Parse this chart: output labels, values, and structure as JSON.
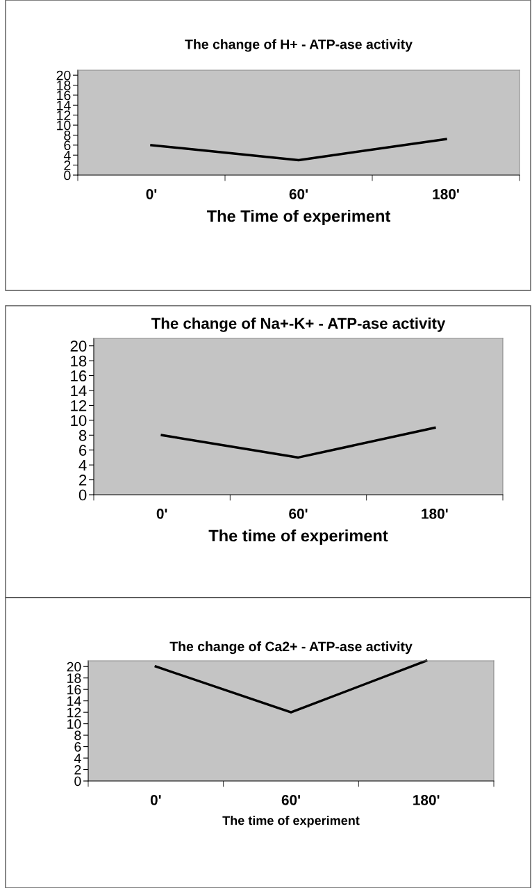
{
  "chart_data": [
    {
      "type": "line",
      "title": "The change of H+ - ATP-ase activity",
      "xlabel": "The Time of experiment",
      "categories": [
        "0'",
        "60'",
        "180'"
      ],
      "series": [
        {
          "color": "#000000",
          "values": [
            6,
            3,
            7.2
          ]
        }
      ],
      "ylim": [
        0,
        21
      ],
      "yticks": [
        0,
        2,
        4,
        6,
        8,
        10,
        12,
        14,
        16,
        18,
        20
      ],
      "grid": false,
      "marker": "none",
      "line_style": "solid"
    },
    {
      "type": "line",
      "title": "The change of Na+-K+ - ATP-ase activity",
      "xlabel": "The time of experiment",
      "categories": [
        "0'",
        "60'",
        "180'"
      ],
      "series": [
        {
          "color": "#000000",
          "values": [
            8,
            5,
            9
          ]
        }
      ],
      "ylim": [
        0,
        21
      ],
      "yticks": [
        0,
        2,
        4,
        6,
        8,
        10,
        12,
        14,
        16,
        18,
        20
      ],
      "grid": false,
      "marker": "none",
      "line_style": "solid"
    },
    {
      "type": "line",
      "title": "The change of Ca2+ - ATP-ase activity",
      "xlabel": "The time of experiment",
      "categories": [
        "0'",
        "60'",
        "180'"
      ],
      "series": [
        {
          "color": "#000000",
          "values": [
            20,
            12,
            21
          ]
        }
      ],
      "ylim": [
        0,
        21
      ],
      "yticks": [
        0,
        2,
        4,
        6,
        8,
        10,
        12,
        14,
        16,
        18,
        20
      ],
      "grid": false,
      "marker": "none",
      "line_style": "solid"
    }
  ]
}
